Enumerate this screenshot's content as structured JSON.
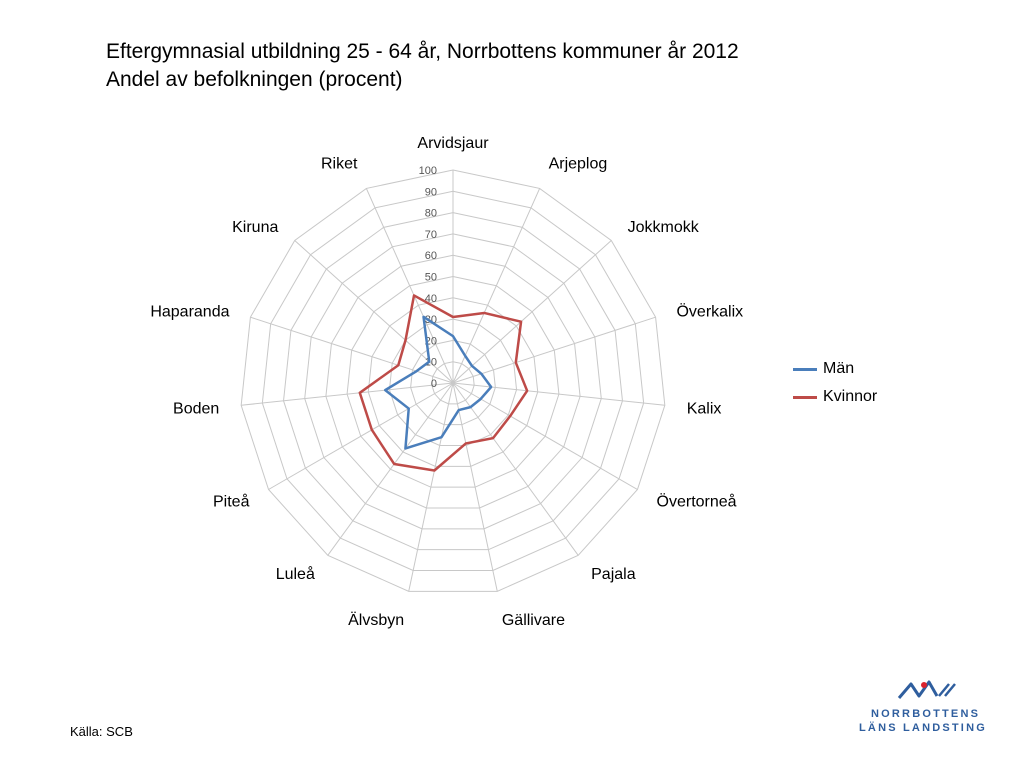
{
  "title": {
    "line1": "Eftergymnasial utbildning 25 -  64 år,  Norrbottens kommuner år 2012",
    "line2": "Andel av befolkningen (procent)"
  },
  "source": "Källa: SCB",
  "logo": {
    "line1": "NORRBOTTENS",
    "line2": "LÄNS LANDSTING"
  },
  "chart_data": {
    "type": "radar",
    "categories": [
      "Arvidsjaur",
      "Arjeplog",
      "Jokkmokk",
      "Överkalix",
      "Kalix",
      "Övertorneå",
      "Pajala",
      "Gällivare",
      "Älvsbyn",
      "Luleå",
      "Piteå",
      "Boden",
      "Haparanda",
      "Kiruna",
      "Riket"
    ],
    "radial_ticks": [
      "0",
      "10",
      "20",
      "30",
      "40",
      "50",
      "60",
      "70",
      "80",
      "90",
      "100"
    ],
    "rlim": [
      0,
      100
    ],
    "series": [
      {
        "name": "Män",
        "color": "#4a7ebb",
        "values": [
          22,
          14,
          12,
          14,
          18,
          15,
          14,
          13,
          26,
          38,
          24,
          32,
          18,
          15,
          34
        ]
      },
      {
        "name": "Kvinnor",
        "color": "#be4b48",
        "values": [
          31,
          36,
          43,
          31,
          35,
          31,
          32,
          29,
          42,
          47,
          44,
          44,
          27,
          30,
          45
        ]
      }
    ],
    "grid": true,
    "legend_position": "right"
  }
}
